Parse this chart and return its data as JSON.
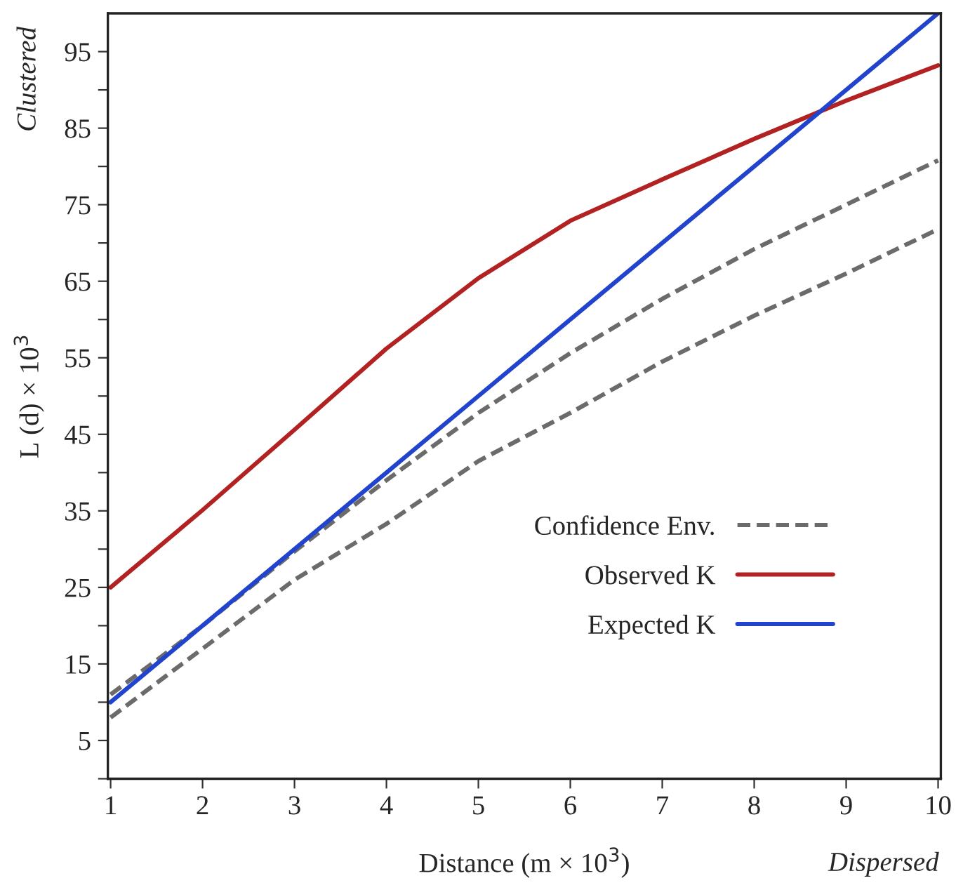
{
  "chart_data": {
    "type": "line",
    "x": [
      1,
      2,
      3,
      4,
      5,
      6,
      7,
      8,
      9,
      10
    ],
    "series": [
      {
        "name": "Confidence Env.",
        "color": "#6b6b6b",
        "line_style": "dashed",
        "values": [
          11,
          20,
          29.7,
          39,
          47.8,
          55.6,
          62.7,
          69.2,
          75,
          80.8
        ]
      },
      {
        "color": "#6b6b6b",
        "line_style": "dashed",
        "values": [
          8,
          17,
          26,
          33.3,
          41.5,
          47.8,
          54.5,
          60.5,
          66,
          71.8
        ]
      },
      {
        "name": "Observed K",
        "color": "#b22222",
        "values": [
          25,
          35.1,
          45.6,
          56.2,
          65.4,
          72.9,
          78.3,
          83.6,
          88.6,
          93.2
        ]
      },
      {
        "name": "Expected K",
        "color": "#2244cc",
        "values": [
          10,
          20,
          30,
          40,
          50,
          60,
          70,
          80,
          90,
          100
        ]
      }
    ],
    "xlabel": "Distance (m × 10$^{3}$)",
    "ylabel": "L (d) × 10$^{3}$",
    "annotations": [
      "Clustered",
      "Dispersed"
    ],
    "xlim": [
      0.97,
      10.03
    ],
    "ylim": [
      0,
      100
    ],
    "xticks": [
      1,
      2,
      3,
      4,
      5,
      6,
      7,
      8,
      9,
      10
    ],
    "yticks": [
      {
        "value": 0,
        "label": null
      },
      5,
      {
        "value": 10,
        "label": null
      },
      15,
      {
        "value": 20,
        "label": null
      },
      25,
      {
        "value": 30,
        "label": null
      },
      35,
      {
        "value": 40,
        "label": null
      },
      45,
      {
        "value": 50,
        "label": null
      },
      55,
      {
        "value": 60,
        "label": null
      },
      65,
      {
        "value": 70,
        "label": null
      },
      75,
      {
        "value": 80,
        "label": null
      },
      85,
      {
        "value": 90,
        "label": null
      },
      95
    ],
    "grid": false,
    "legend": "bottom right",
    "marker": "none",
    "line_style": "solid"
  }
}
